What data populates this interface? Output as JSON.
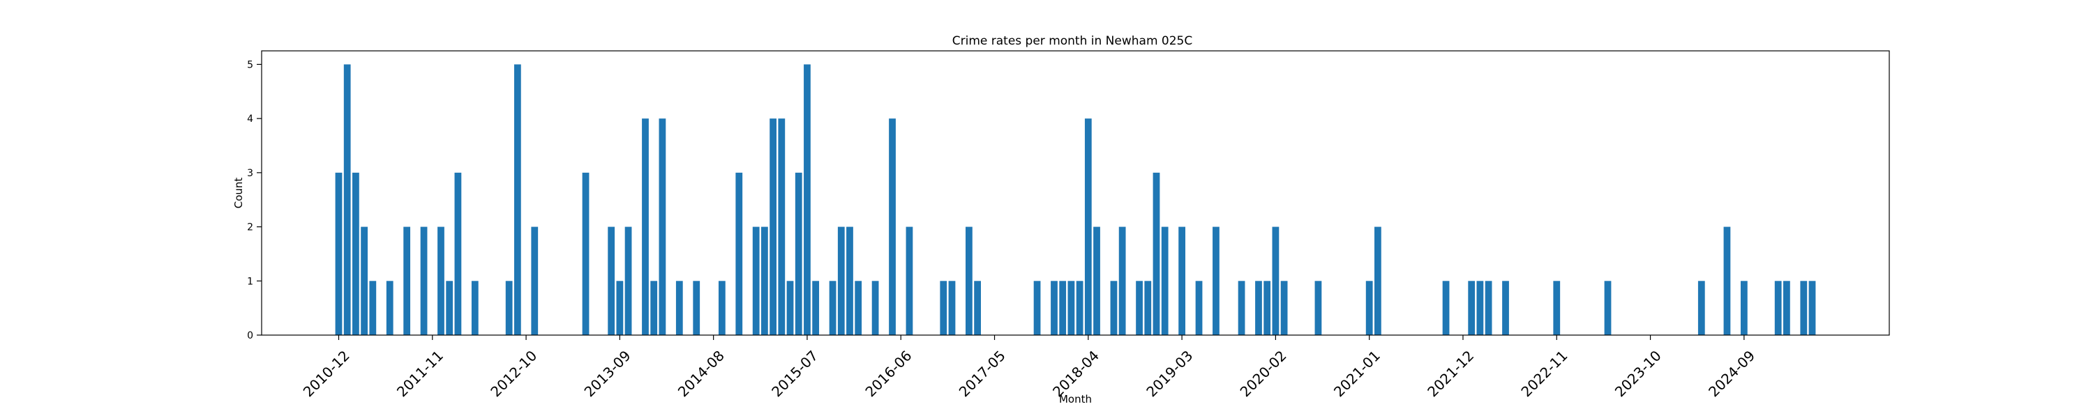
{
  "chart_data": {
    "type": "bar",
    "title": "Crime rates per month in Newham 025C",
    "xlabel": "Month",
    "ylabel": "Count",
    "ylim": [
      0,
      5.25
    ],
    "y_ticks": [
      0,
      1,
      2,
      3,
      4,
      5
    ],
    "x_ticks": [
      "2010-12",
      "2011-11",
      "2012-10",
      "2013-09",
      "2014-08",
      "2015-07",
      "2016-06",
      "2017-05",
      "2018-04",
      "2019-03",
      "2020-02",
      "2021-01",
      "2021-12",
      "2022-11",
      "2023-10",
      "2024-09"
    ],
    "color": "#1f77b4",
    "grid": false,
    "x": [
      "2010-12",
      "2011-01",
      "2011-02",
      "2011-03",
      "2011-04",
      "2011-06",
      "2011-08",
      "2011-10",
      "2011-12",
      "2012-01",
      "2012-02",
      "2012-04",
      "2012-08",
      "2012-09",
      "2012-11",
      "2013-05",
      "2013-08",
      "2013-09",
      "2013-10",
      "2013-12",
      "2014-01",
      "2014-02",
      "2014-04",
      "2014-06",
      "2014-09",
      "2014-11",
      "2015-01",
      "2015-02",
      "2015-03",
      "2015-04",
      "2015-05",
      "2015-06",
      "2015-07",
      "2015-08",
      "2015-10",
      "2015-11",
      "2015-12",
      "2016-01",
      "2016-03",
      "2016-05",
      "2016-07",
      "2016-11",
      "2016-12",
      "2017-02",
      "2017-03",
      "2017-10",
      "2017-12",
      "2018-01",
      "2018-02",
      "2018-03",
      "2018-04",
      "2018-05",
      "2018-07",
      "2018-08",
      "2018-10",
      "2018-11",
      "2018-12",
      "2019-01",
      "2019-03",
      "2019-05",
      "2019-07",
      "2019-10",
      "2019-12",
      "2020-01",
      "2020-02",
      "2020-03",
      "2020-07",
      "2021-01",
      "2021-02",
      "2021-10",
      "2022-01",
      "2022-02",
      "2022-03",
      "2022-05",
      "2022-11",
      "2023-05",
      "2024-04",
      "2024-07",
      "2024-09",
      "2025-01",
      "2025-02",
      "2025-04",
      "2025-05"
    ],
    "values": [
      3,
      5,
      3,
      2,
      1,
      1,
      2,
      2,
      2,
      1,
      3,
      1,
      1,
      5,
      2,
      3,
      2,
      1,
      2,
      4,
      1,
      4,
      1,
      1,
      1,
      3,
      2,
      2,
      4,
      4,
      1,
      3,
      5,
      1,
      1,
      2,
      2,
      1,
      1,
      4,
      2,
      1,
      1,
      2,
      1,
      1,
      1,
      1,
      1,
      1,
      4,
      2,
      1,
      2,
      1,
      1,
      3,
      2,
      2,
      1,
      2,
      1,
      1,
      1,
      2,
      1,
      1,
      1,
      2,
      1,
      1,
      1,
      1,
      1,
      1,
      1,
      1,
      2,
      1,
      1,
      1,
      1,
      1
    ]
  }
}
